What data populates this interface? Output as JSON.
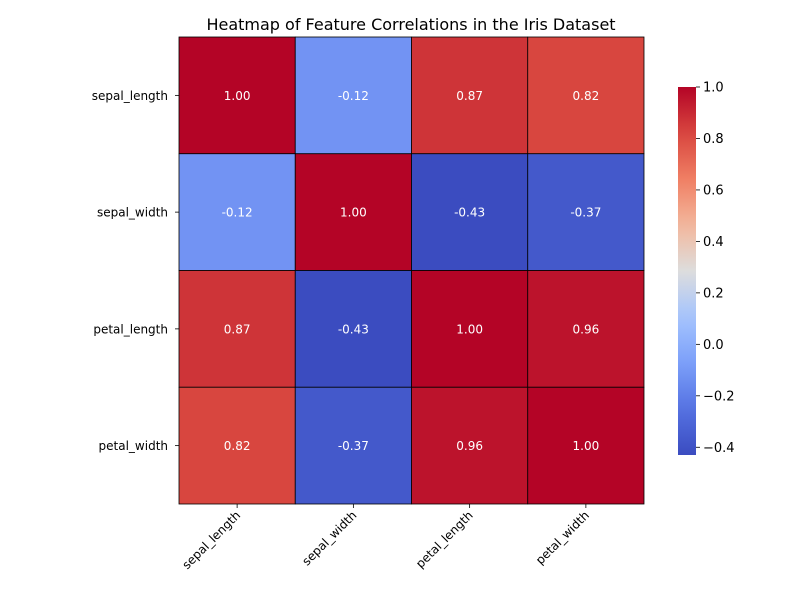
{
  "chart_data": {
    "type": "heatmap",
    "title": "Heatmap of Feature Correlations in the Iris Dataset",
    "row_labels": [
      "sepal_length",
      "sepal_width",
      "petal_length",
      "petal_width"
    ],
    "col_labels": [
      "sepal_length",
      "sepal_width",
      "petal_length",
      "petal_width"
    ],
    "values": [
      [
        1.0,
        -0.12,
        0.87,
        0.82
      ],
      [
        -0.12,
        1.0,
        -0.43,
        -0.37
      ],
      [
        0.87,
        -0.43,
        1.0,
        0.96
      ],
      [
        0.82,
        -0.37,
        0.96,
        1.0
      ]
    ],
    "annotations": [
      [
        "1.00",
        "-0.12",
        "0.87",
        "0.82"
      ],
      [
        "-0.12",
        "1.00",
        "-0.43",
        "-0.37"
      ],
      [
        "0.87",
        "-0.43",
        "1.00",
        "0.96"
      ],
      [
        "0.82",
        "-0.37",
        "0.96",
        "1.00"
      ]
    ],
    "colormap": "coolwarm",
    "vmin": -0.43,
    "vmax": 1.0,
    "colorbar": {
      "ticks": [
        -0.4,
        -0.2,
        0.0,
        0.2,
        0.4,
        0.6,
        0.8,
        1.0
      ],
      "tick_labels": [
        "−0.4",
        "−0.2",
        "0.0",
        "0.2",
        "0.4",
        "0.6",
        "0.8",
        "1.0"
      ]
    },
    "cell_border_color": "#000000",
    "x_tick_rotation_deg": 45
  }
}
